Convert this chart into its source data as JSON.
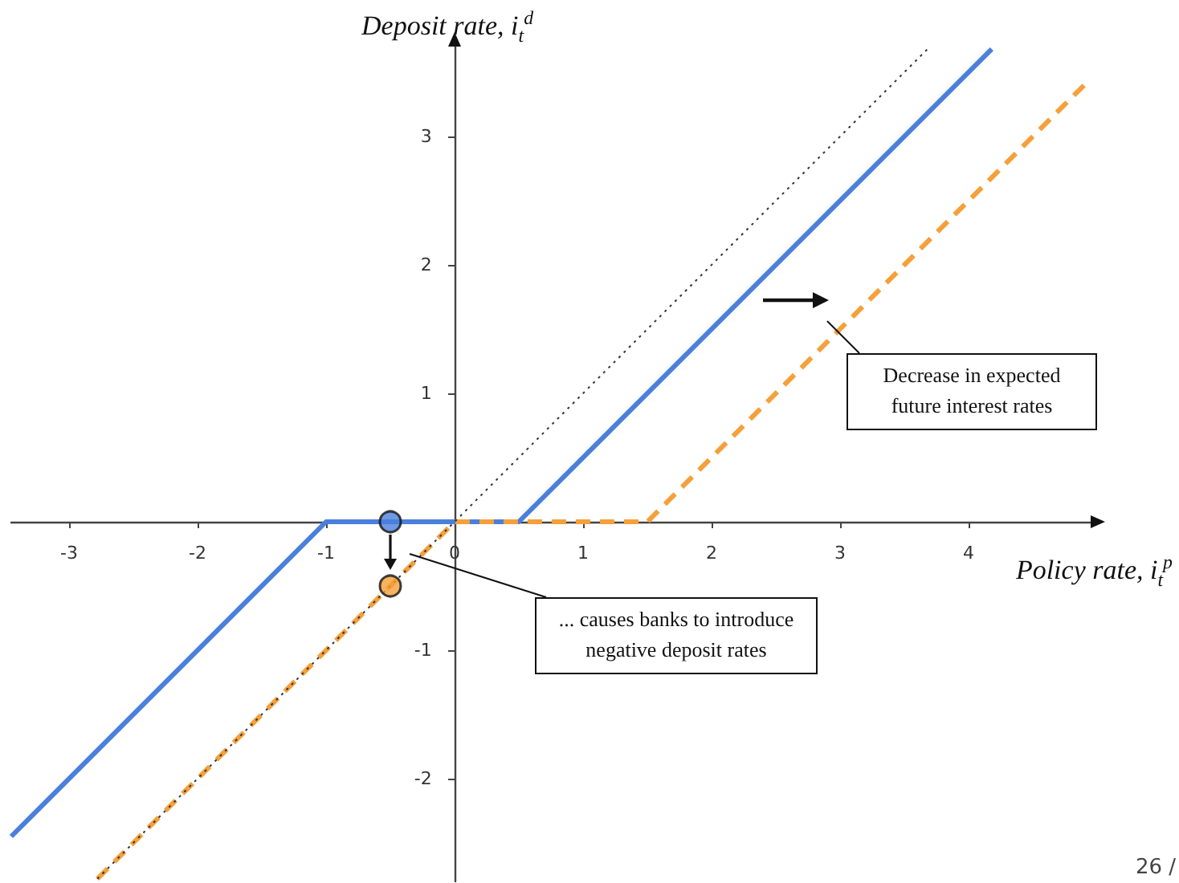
{
  "chart_data": {
    "type": "line",
    "xlabel": "Policy rate, i$_{t}$$^{p}$",
    "ylabel": "Deposit rate, i$_{t}$$^{d}$",
    "xlim": [
      -3.45,
      4.95
    ],
    "ylim": [
      -2.8,
      3.7
    ],
    "xticks": [
      -3,
      -2,
      -1,
      0,
      1,
      2,
      3,
      4
    ],
    "yticks": [
      -2,
      -1,
      1,
      2,
      3
    ],
    "series": [
      {
        "color": "#4a7fdc",
        "line_style": "solid",
        "x": [
          -3.45,
          -1,
          0.5,
          4.18
        ],
        "values": [
          -2.45,
          0,
          0,
          3.68
        ]
      },
      {
        "color": "#f5a03a",
        "line_style": "dashed",
        "x": [
          -2.78,
          0,
          1.5,
          4.95
        ],
        "values": [
          -2.78,
          0,
          0,
          3.45
        ]
      },
      {
        "color": "#333333",
        "line_style": "dotted",
        "x": [
          -2.78,
          3.68
        ],
        "values": [
          -2.78,
          3.68
        ]
      },
      {
        "type": "scatter",
        "marker": "circle",
        "colors": [
          "#4a7fdc",
          "#f5a03a"
        ],
        "x": [
          -0.5,
          -0.5
        ],
        "values": [
          0,
          -0.5
        ]
      }
    ],
    "annotations": [
      "Decrease in expected future interest rates",
      {
        "text": "... causes banks to introduce negative deposit rates",
        "x": -0.35,
        "y": -0.25
      },
      "26 /"
    ]
  }
}
